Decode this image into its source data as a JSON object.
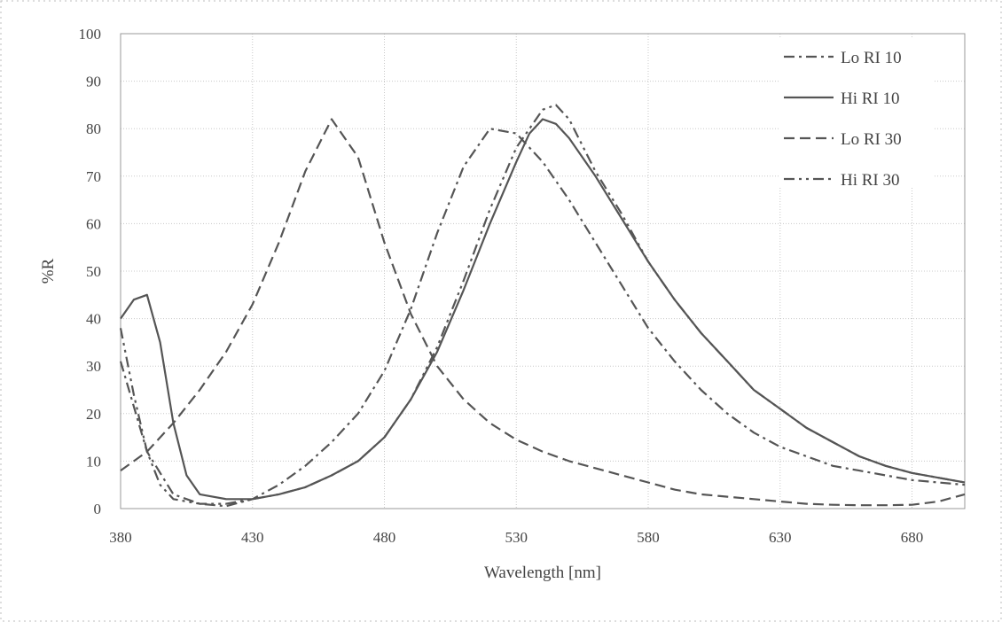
{
  "chart_data": {
    "type": "line",
    "title": "",
    "xlabel": "Wavelength [nm]",
    "ylabel": "%R",
    "xlim": [
      380,
      700
    ],
    "ylim": [
      0,
      100
    ],
    "x_ticks": [
      380,
      430,
      480,
      530,
      580,
      630,
      680
    ],
    "y_ticks": [
      0,
      10,
      20,
      30,
      40,
      50,
      60,
      70,
      80,
      90,
      100
    ],
    "grid": true,
    "legend_position": "top-right",
    "series": [
      {
        "name": "Lo RI 10",
        "style": "dash-dot",
        "x": [
          380,
          390,
          400,
          410,
          420,
          430,
          440,
          450,
          460,
          470,
          480,
          490,
          500,
          510,
          520,
          530,
          540,
          550,
          560,
          570,
          580,
          590,
          600,
          610,
          620,
          630,
          640,
          650,
          660,
          670,
          680,
          690,
          700
        ],
        "y": [
          31,
          12,
          3,
          1,
          0.5,
          2,
          5,
          9,
          14,
          20,
          29,
          42,
          58,
          72,
          80,
          79,
          73,
          65,
          56,
          47,
          38,
          31,
          25,
          20,
          16,
          13,
          11,
          9,
          8,
          7,
          6,
          5.5,
          5
        ]
      },
      {
        "name": "Hi RI 10",
        "style": "solid",
        "x": [
          380,
          385,
          390,
          395,
          400,
          405,
          410,
          420,
          430,
          440,
          450,
          460,
          470,
          480,
          490,
          500,
          510,
          520,
          530,
          535,
          540,
          545,
          550,
          560,
          570,
          580,
          590,
          600,
          610,
          620,
          630,
          640,
          650,
          660,
          670,
          680,
          690,
          700
        ],
        "y": [
          40,
          44,
          45,
          35,
          18,
          7,
          3,
          2,
          2,
          3,
          4.5,
          7,
          10,
          15,
          23,
          33,
          46,
          60,
          73,
          79,
          82,
          81,
          78,
          70,
          61,
          52,
          44,
          37,
          31,
          25,
          21,
          17,
          14,
          11,
          9,
          7.5,
          6.5,
          5.5
        ]
      },
      {
        "name": "Lo RI 30",
        "style": "dashed",
        "x": [
          380,
          390,
          400,
          410,
          420,
          430,
          440,
          450,
          460,
          470,
          480,
          490,
          500,
          510,
          520,
          530,
          540,
          550,
          560,
          570,
          580,
          590,
          600,
          610,
          620,
          630,
          640,
          650,
          660,
          670,
          680,
          690,
          700
        ],
        "y": [
          8,
          12,
          18,
          25,
          33,
          43,
          56,
          71,
          82,
          74,
          56,
          41,
          30,
          23,
          18,
          14.5,
          12,
          10,
          8.5,
          7,
          5.5,
          4,
          3,
          2.5,
          2,
          1.5,
          1,
          0.8,
          0.7,
          0.7,
          0.8,
          1.5,
          3
        ]
      },
      {
        "name": "Hi RI 30",
        "style": "dash-dot-dot",
        "x": [
          380,
          385,
          390,
          395,
          400,
          410,
          420,
          430,
          440,
          450,
          460,
          470,
          480,
          490,
          500,
          510,
          520,
          530,
          540,
          545,
          550,
          560,
          570,
          580,
          590,
          600,
          610,
          620,
          630,
          640,
          650,
          660,
          670,
          680,
          690,
          700
        ],
        "y": [
          38,
          24,
          12,
          5,
          2,
          1,
          1,
          2,
          3,
          4.5,
          7,
          10,
          15,
          23,
          34,
          48,
          63,
          76,
          84,
          85,
          82,
          71,
          62,
          52,
          44,
          37,
          31,
          25,
          21,
          17,
          14,
          11,
          9,
          7.5,
          6.5,
          5.5
        ]
      }
    ]
  }
}
